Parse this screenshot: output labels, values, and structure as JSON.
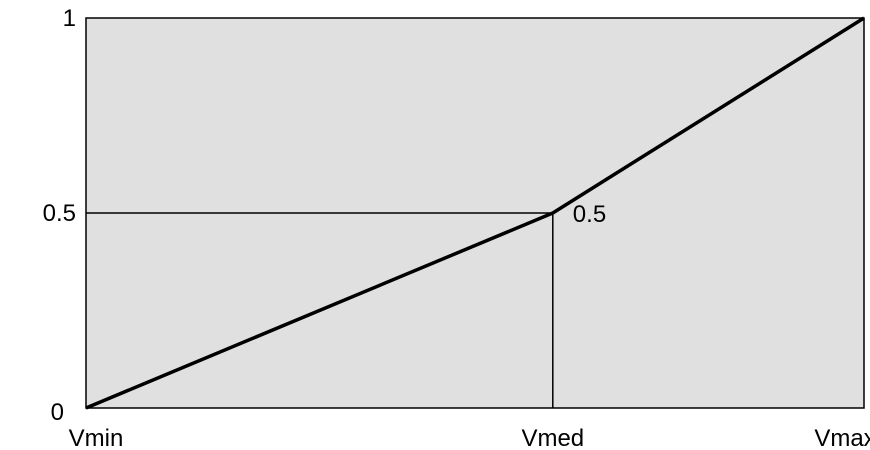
{
  "chart_data": {
    "type": "line",
    "title": "",
    "xlabel": "",
    "ylabel": "",
    "x_tick_labels": [
      "Vmin",
      "Vmed",
      "Vmax"
    ],
    "y_tick_labels": [
      "0",
      "0.5",
      "1"
    ],
    "x": [
      0,
      0.6,
      1
    ],
    "y": [
      0,
      0.5,
      1
    ],
    "xlim": [
      0,
      1
    ],
    "ylim": [
      0,
      1
    ],
    "grid": false,
    "reference_lines": [
      {
        "from": "Vmed",
        "value": 0.5
      }
    ],
    "annotations": [
      {
        "text": "0.5",
        "at_x": 0.6,
        "at_y": 0.5
      }
    ],
    "colors": {
      "plot_background": "#e0e0e0",
      "line": "#000000",
      "axis": "#000000"
    }
  }
}
